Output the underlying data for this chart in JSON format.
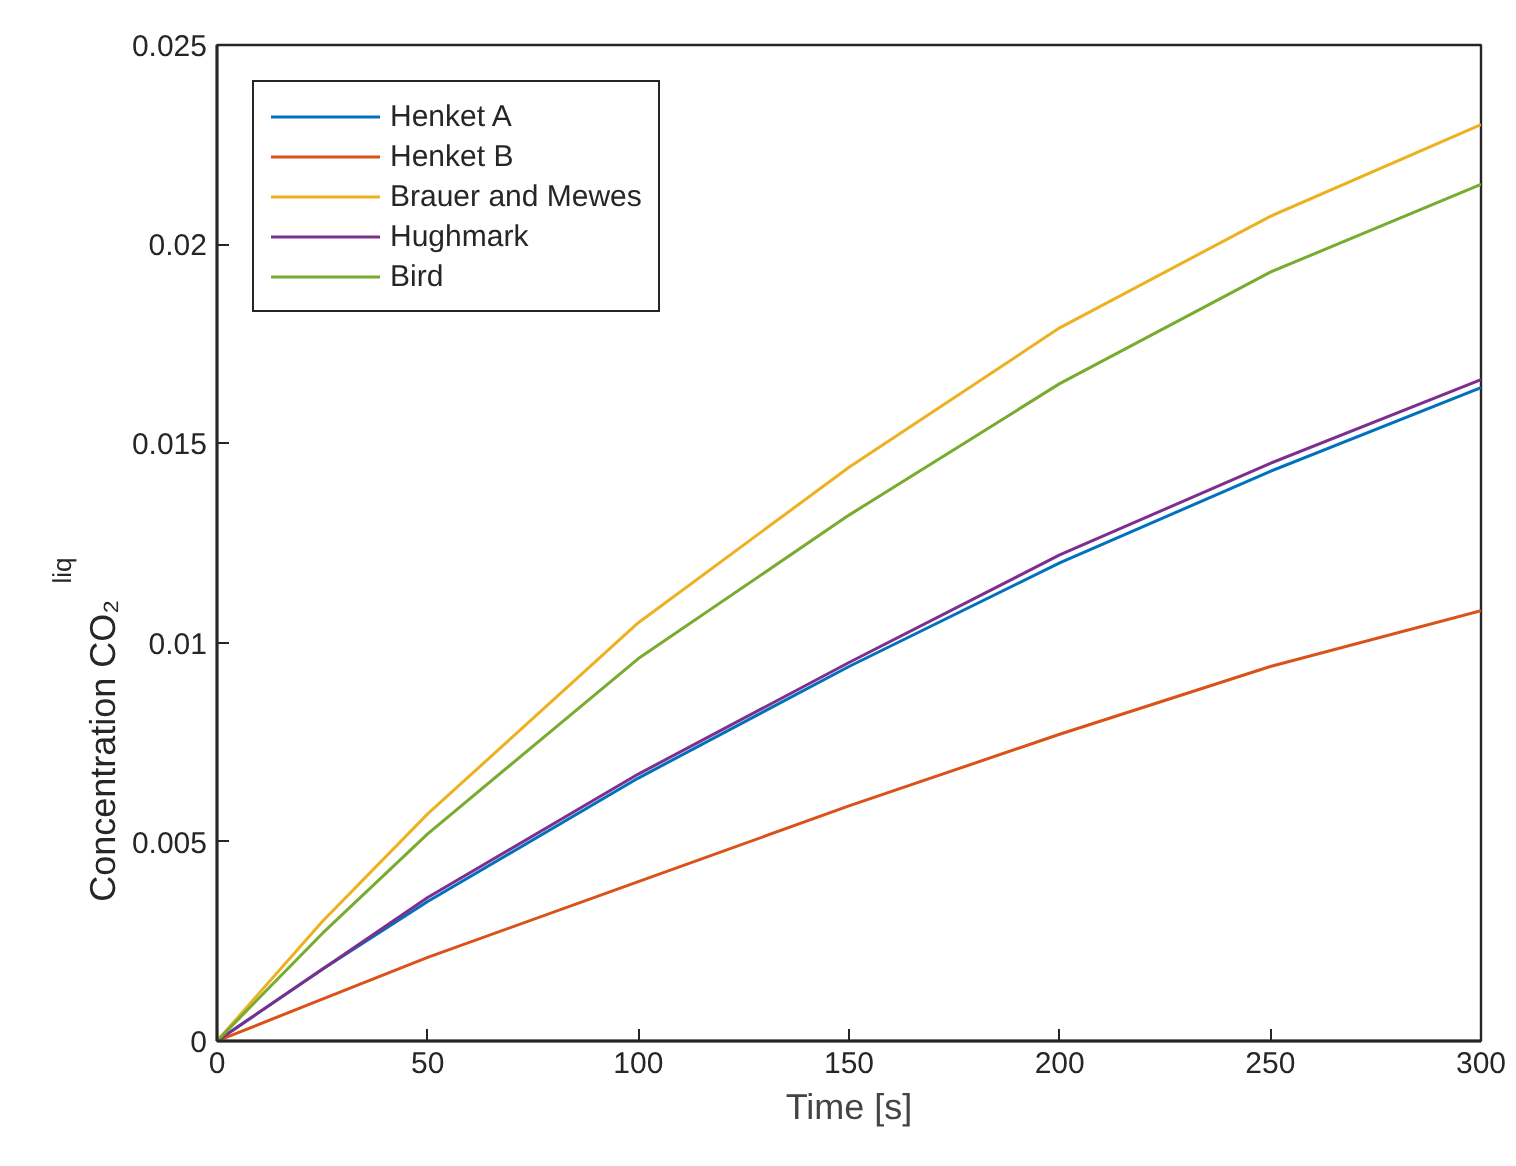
{
  "chart_data": {
    "type": "line",
    "xlabel": "Time [s]",
    "ylabel": "Concentration CO₂$^{liq}$",
    "x": [
      0,
      25,
      50,
      100,
      150,
      200,
      250,
      300
    ],
    "series": [
      {
        "name": "Henket A",
        "color": "#0072bd",
        "values": [
          0,
          0.0018,
          0.0035,
          0.0066,
          0.0094,
          0.012,
          0.0143,
          0.0164
        ]
      },
      {
        "name": "Henket B",
        "color": "#d95319",
        "values": [
          0,
          0.00105,
          0.0021,
          0.004,
          0.0059,
          0.0077,
          0.0094,
          0.0108
        ]
      },
      {
        "name": "Brauer and Mewes",
        "color": "#edb120",
        "values": [
          0,
          0.003,
          0.0057,
          0.0105,
          0.0144,
          0.0179,
          0.0207,
          0.023
        ]
      },
      {
        "name": "Hughmark",
        "color": "#7e2f8e",
        "values": [
          0,
          0.0018,
          0.0036,
          0.0067,
          0.0095,
          0.0122,
          0.0145,
          0.0166
        ]
      },
      {
        "name": "Bird",
        "color": "#77ac30",
        "values": [
          0,
          0.0027,
          0.0052,
          0.0096,
          0.0132,
          0.0165,
          0.0193,
          0.0215
        ]
      }
    ],
    "xlim": [
      0,
      300
    ],
    "ylim": [
      0,
      0.025
    ],
    "xticks": [
      0,
      50,
      100,
      150,
      200,
      250,
      300
    ],
    "yticks": [
      0,
      0.005,
      0.01,
      0.015,
      0.02,
      0.025
    ],
    "grid": false,
    "legend": "top left",
    "line_style": "solid",
    "marker": "none"
  }
}
